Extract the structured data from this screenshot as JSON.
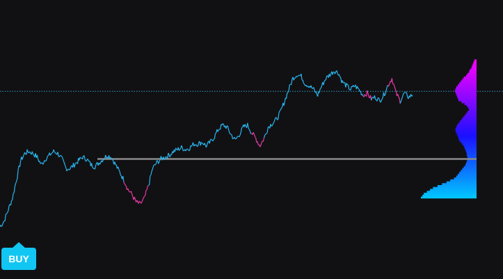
{
  "signal": {
    "label": "BUY",
    "color": "#11c6f2"
  },
  "colors": {
    "background": "#111113",
    "trend_up": "#2bb6f0",
    "trend_down": "#e93aa6",
    "reference_line": "#8a8a8e",
    "dotted_line": "#35a0c8",
    "profile_top": "#ff00ff",
    "profile_mid": "#1a10ff",
    "profile_bottom": "#00c8ff"
  },
  "chart_data": {
    "type": "line",
    "title": "",
    "xlabel": "",
    "ylabel": "",
    "ylim": [
      0,
      100
    ],
    "grid": false,
    "series": [
      {
        "values": [
          9,
          12,
          18,
          24,
          34,
          44,
          48,
          49,
          48,
          46,
          42,
          45,
          47,
          49,
          48,
          45,
          40,
          40,
          42,
          44,
          46,
          45,
          42,
          41,
          43,
          45,
          47,
          46,
          42,
          38,
          34,
          29,
          26,
          22,
          21,
          24,
          31,
          40,
          43,
          45,
          46,
          47,
          49,
          50,
          51,
          50,
          51,
          53,
          53,
          54,
          52,
          54,
          57,
          61,
          63,
          62,
          58,
          55,
          58,
          62,
          63,
          59,
          56,
          52,
          56,
          62,
          64,
          66,
          70,
          76,
          82,
          88,
          90,
          89,
          85,
          84,
          82,
          79,
          84,
          88,
          90,
          92,
          91,
          86,
          84,
          82,
          84,
          82,
          79,
          80,
          77,
          78,
          76,
          79,
          84,
          88,
          80,
          76,
          80,
          78,
          79
        ]
      }
    ],
    "down_segments": [
      [
        30,
        36
      ],
      [
        61,
        64
      ],
      [
        88,
        90
      ],
      [
        94,
        97
      ]
    ],
    "reference_level": 45,
    "dotted_level": 81,
    "volume_profile": {
      "y_range": [
        24,
        98
      ],
      "widths": [
        3,
        4,
        5,
        6,
        7,
        9,
        10,
        12,
        14,
        17,
        19,
        21,
        23,
        25,
        27,
        28,
        29,
        28,
        27,
        26,
        25,
        24,
        20,
        16,
        13,
        11,
        10,
        12,
        14,
        16,
        18,
        20,
        22,
        24,
        26,
        27,
        28,
        28,
        27,
        26,
        25,
        24,
        23,
        21,
        19,
        17,
        16,
        15,
        14,
        13,
        13,
        12,
        12,
        13,
        14,
        15,
        17,
        19,
        21,
        23,
        25,
        27,
        30,
        35,
        40,
        46,
        52,
        58,
        62,
        66,
        70,
        72,
        74
      ]
    }
  }
}
